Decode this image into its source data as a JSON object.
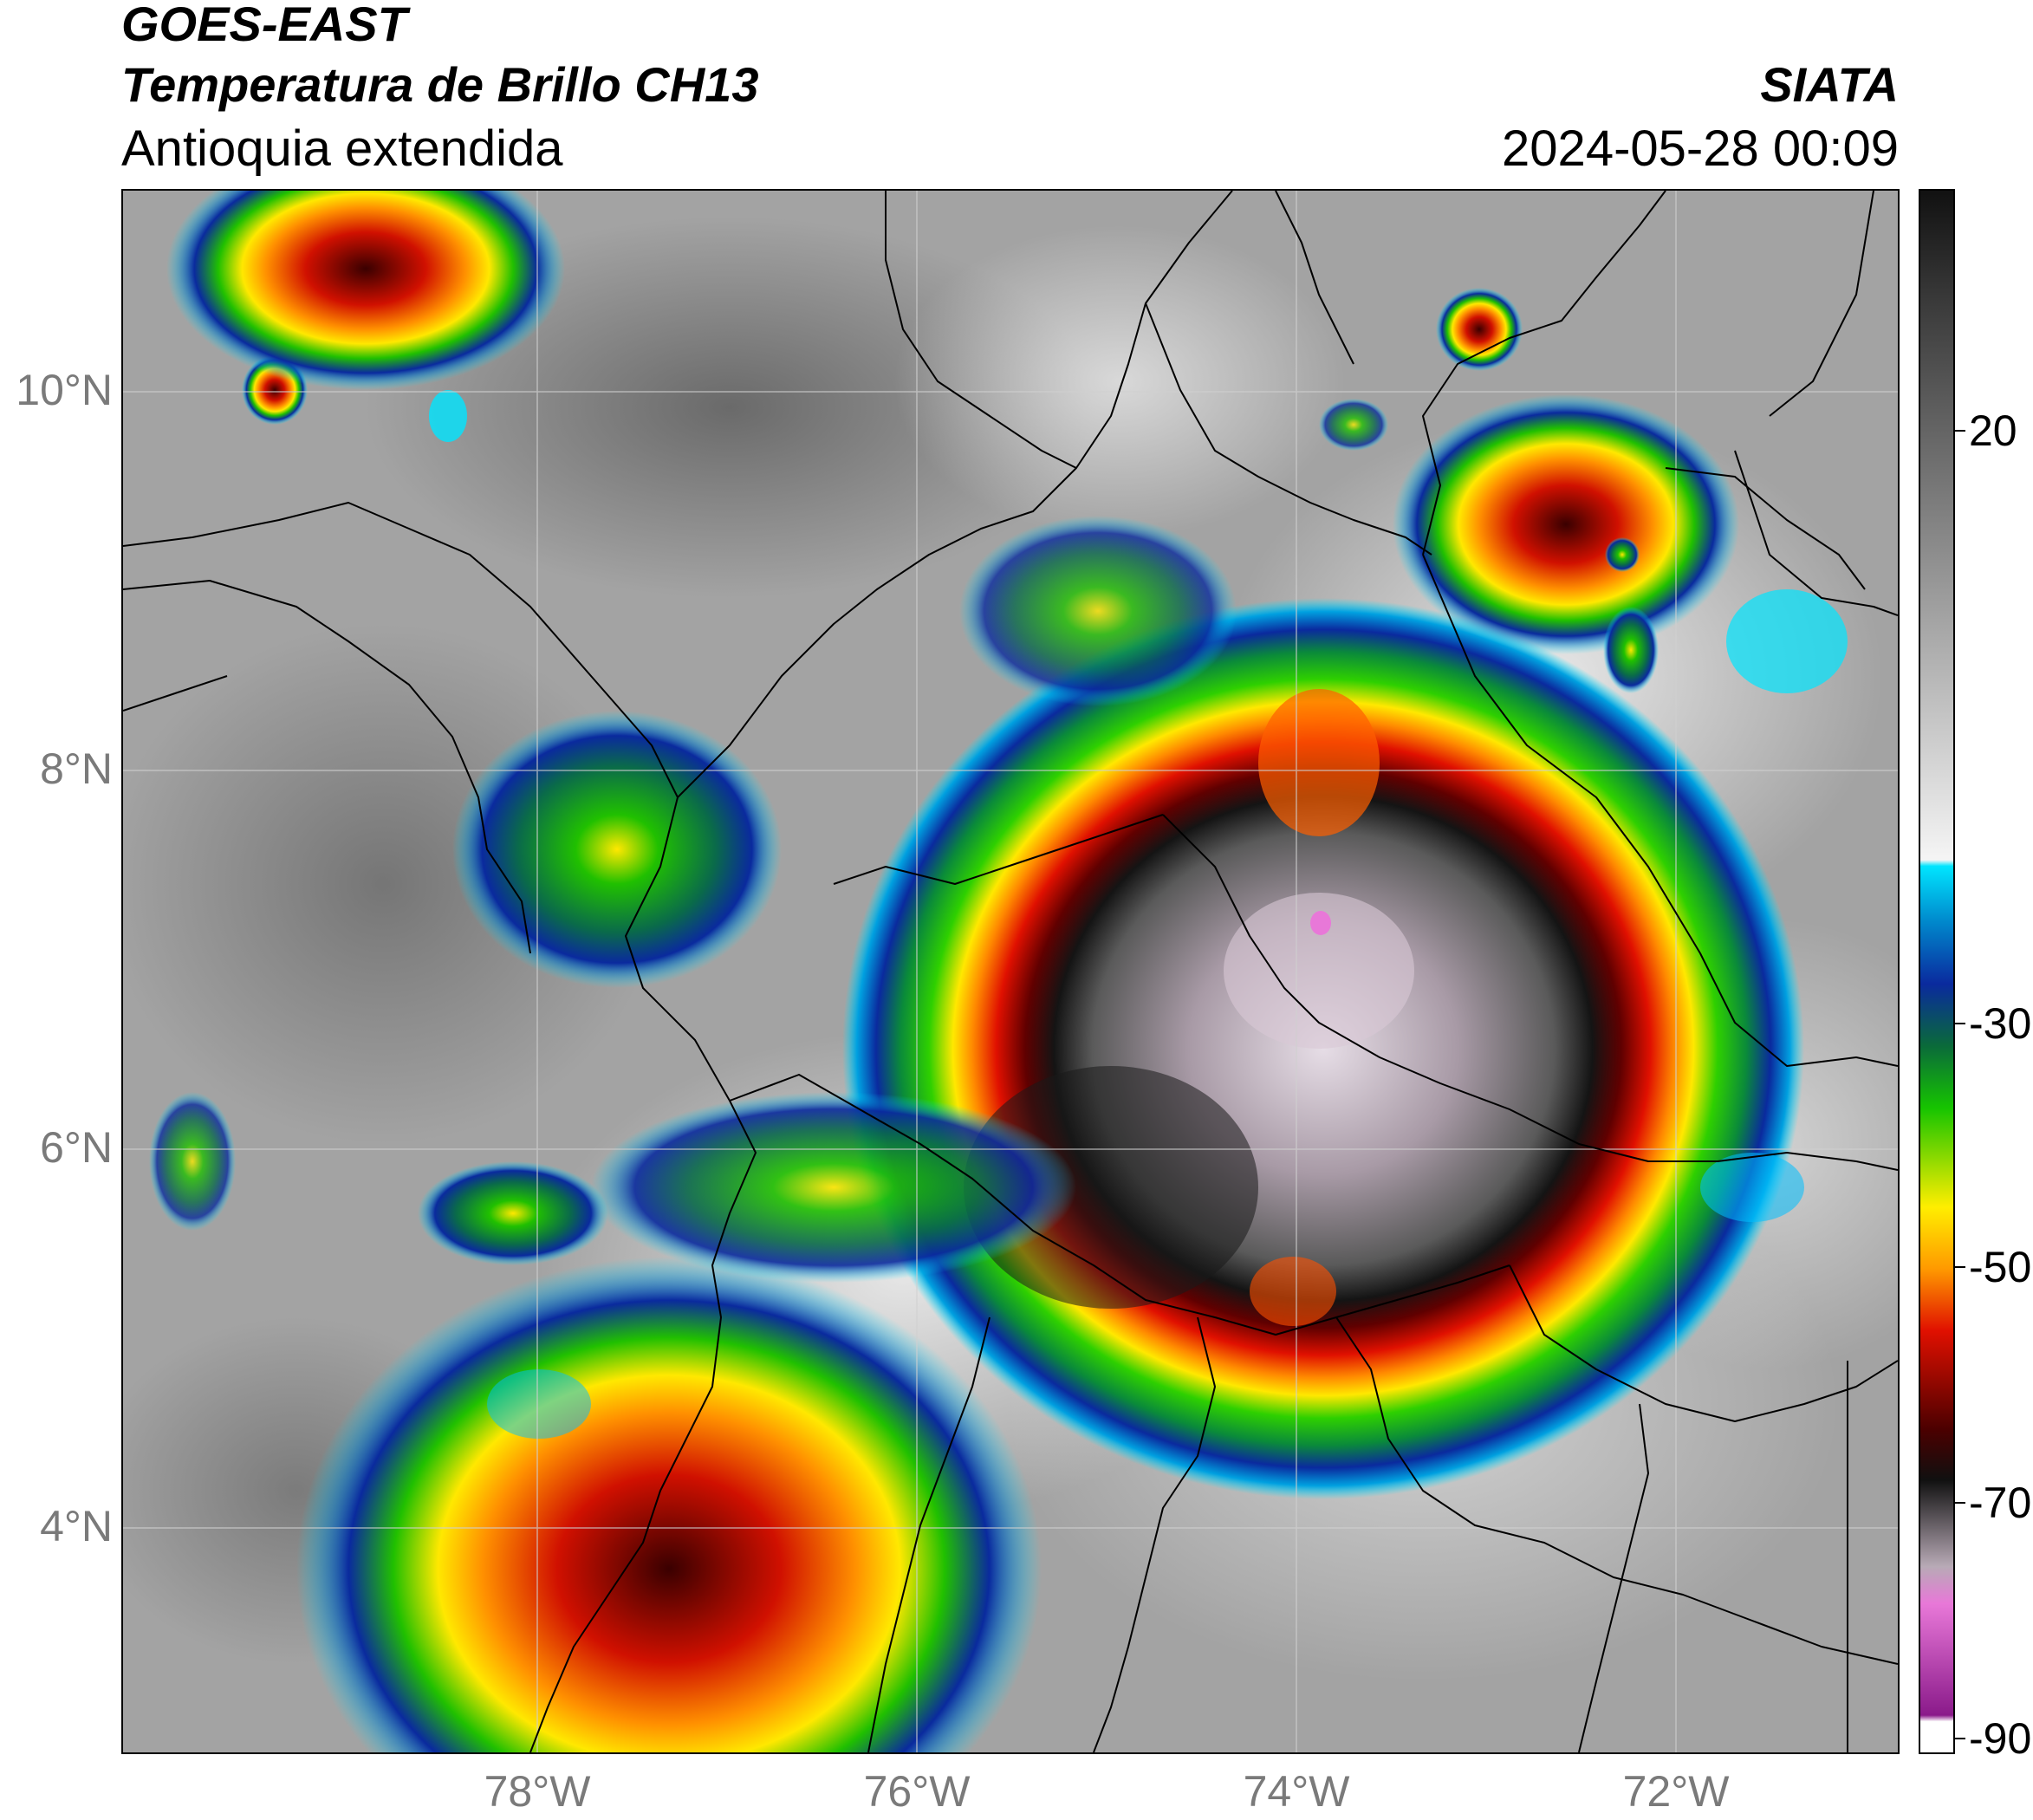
{
  "header": {
    "satellite": "GOES-EAST",
    "product": "Temperatura de Brillo CH13",
    "region": "Antioquia extendida",
    "organization": "SIATA",
    "datetime": "2024-05-28 00:09"
  },
  "map": {
    "lat_labels": [
      "10°N",
      "8°N",
      "6°N",
      "4°N"
    ],
    "lon_labels": [
      "78°W",
      "76°W",
      "74°W",
      "72°W"
    ],
    "lat_values": [
      10,
      8,
      6,
      4
    ],
    "lon_values": [
      -78,
      -76,
      -74,
      -72
    ],
    "extent": {
      "lon_min": -80.1,
      "lon_max": -70.7,
      "lat_min": 2.7,
      "lat_max": 11.1
    }
  },
  "colorbar": {
    "tick_labels": [
      "20",
      "-30",
      "-50",
      "-70",
      "-90"
    ],
    "tick_values": [
      20,
      -30,
      -50,
      -70,
      -90
    ],
    "range": [
      -92,
      34
    ],
    "colors": {
      "warm_top": "#111111",
      "warm_mid": "#8c8c8c",
      "warm_low": "#f5f5f5",
      "cyan": "#00e5ff",
      "blue": "#0a2a9e",
      "green": "#16c400",
      "yellow": "#ffee00",
      "orange": "#ff9900",
      "red": "#e01000",
      "dark_red": "#4a0000",
      "pink": "#e878d8",
      "purple": "#8a1a8a"
    }
  }
}
